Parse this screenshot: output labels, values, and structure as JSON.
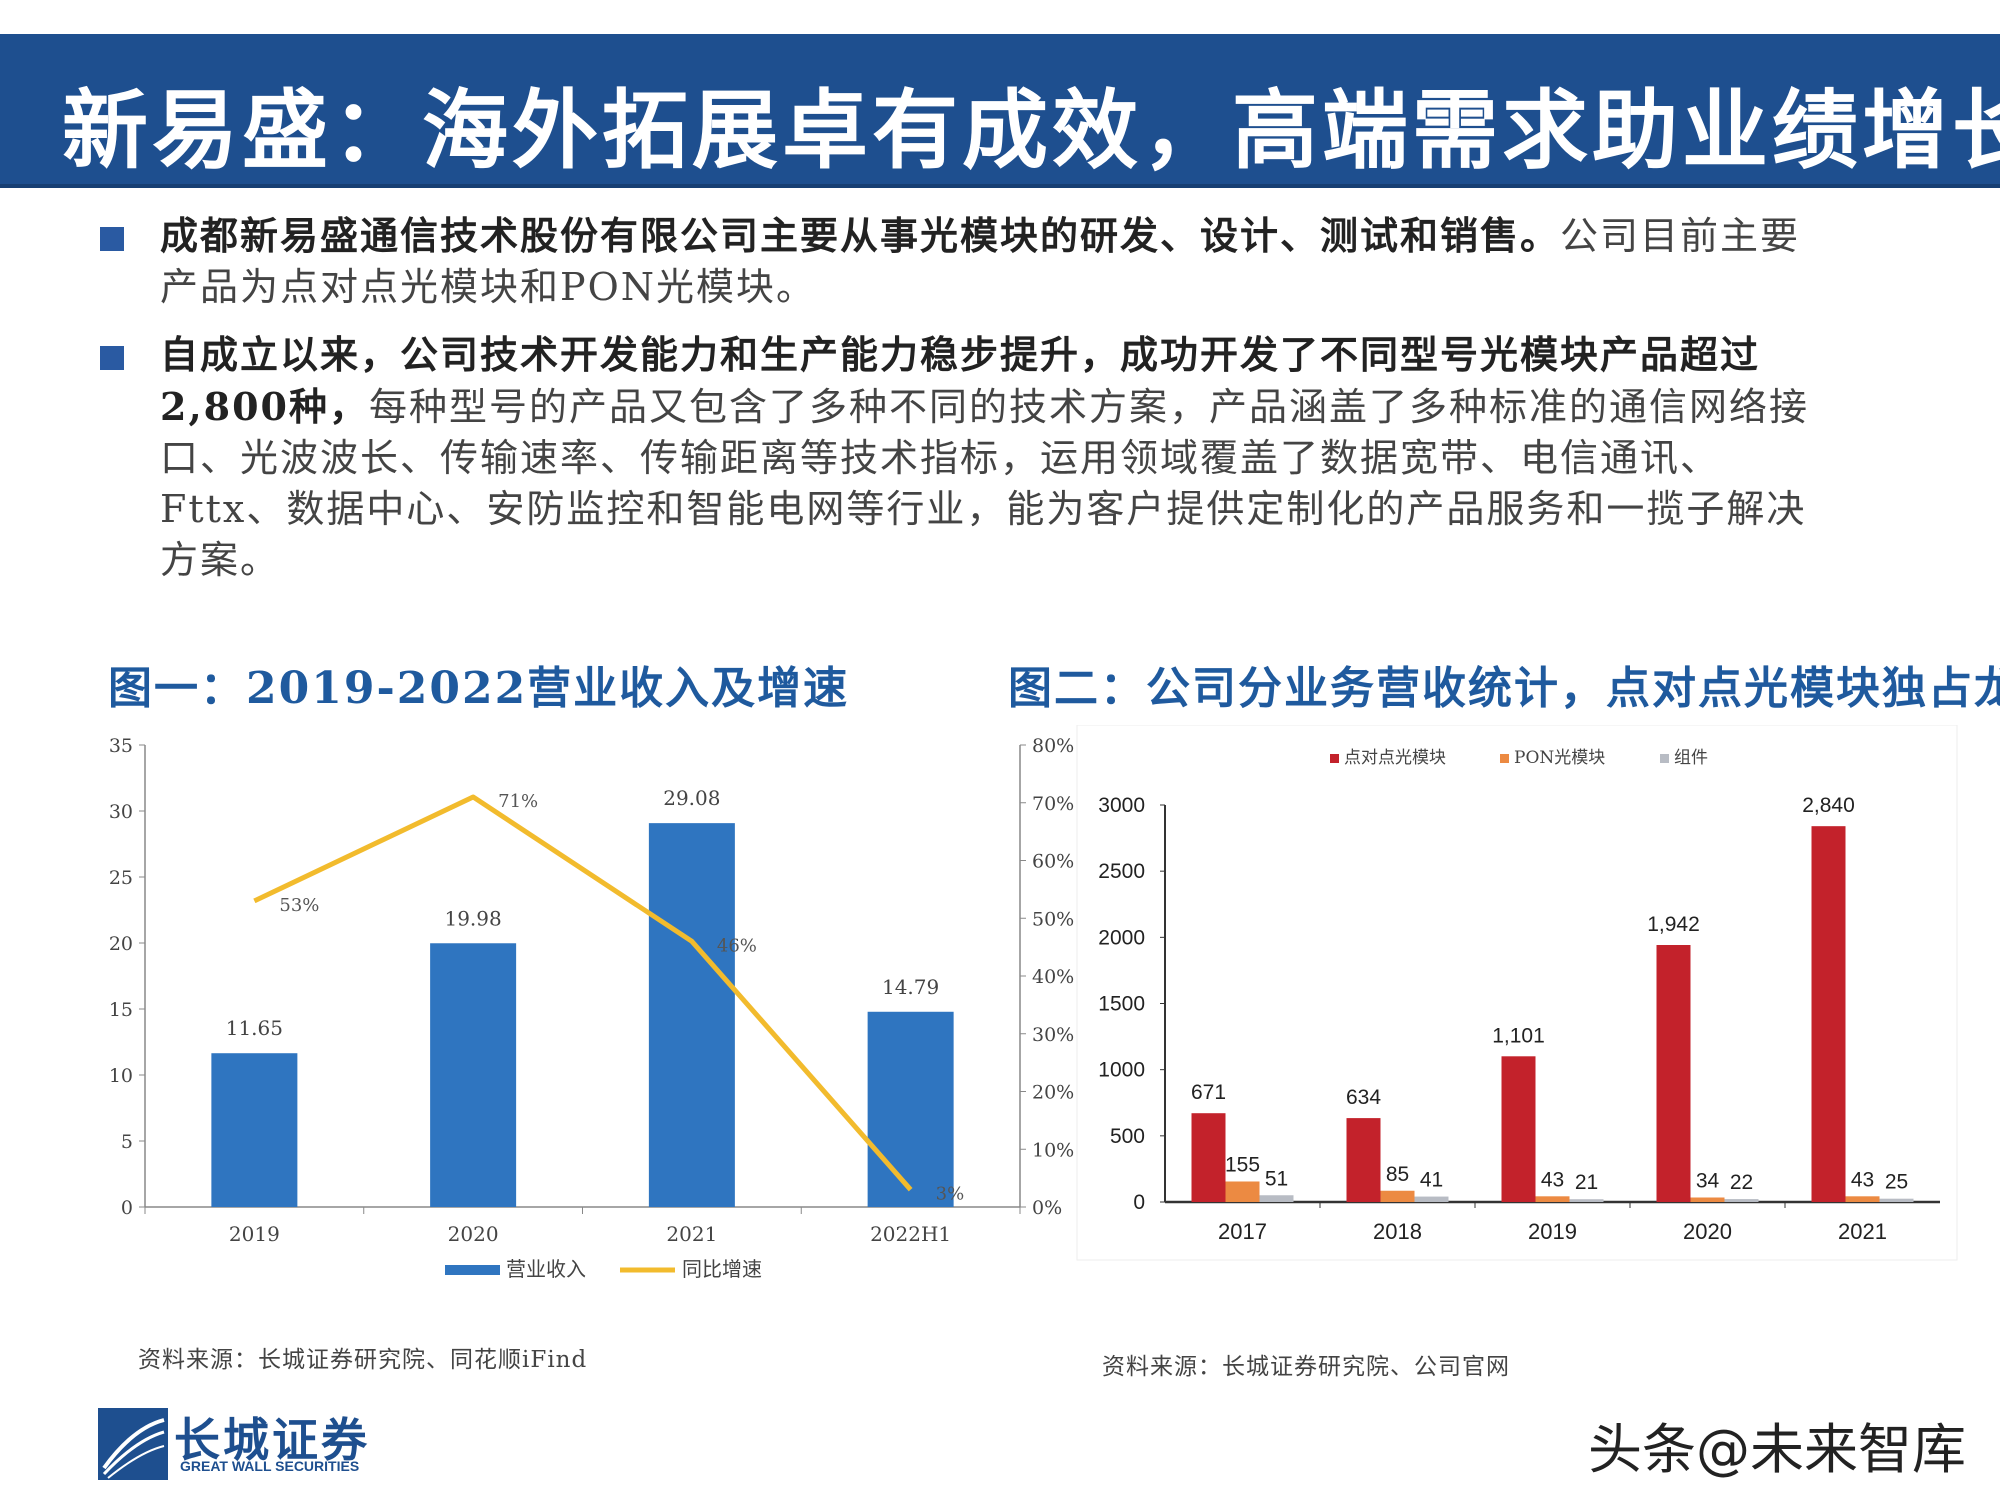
{
  "header": {
    "title": "新易盛：海外拓展卓有成效，高端需求助业绩增长"
  },
  "bullets": [
    {
      "bold": "成都新易盛通信技术股份有限公司主要从事光模块的研发、设计、测试和销售。",
      "text": "公司目前主要产品为点对点光模块和PON光模块。"
    },
    {
      "bold": "自成立以来，公司技术开发能力和生产能力稳步提升，成功开发了不同型号光模块产品超过2,800种，",
      "text": "每种型号的产品又包含了多种不同的技术方案，产品涵盖了多种标准的通信网络接口、光波波长、传输速率、传输距离等技术指标，运用领域覆盖了数据宽带、电信通讯、Fttx、数据中心、安防监控和智能电网等行业，能为客户提供定制化的产品服务和一揽子解决方案。"
    }
  ],
  "figures": {
    "fig1_title": "图一：2019-2022营业收入及增速",
    "fig2_title": "图二：公司分业务营收统计，点对点光模块独占龙头",
    "fig1_source": "资料来源：长城证券研究院、同花顺iFind",
    "fig2_source": "资料来源：长城证券研究院、公司官网"
  },
  "chart_data": [
    {
      "type": "bar",
      "categories": [
        "2019",
        "2020",
        "2021",
        "2022H1"
      ],
      "series": [
        {
          "name": "营业收入",
          "type": "bar",
          "axis": "left",
          "values": [
            11.65,
            19.98,
            29.08,
            14.79
          ],
          "labels": [
            "11.65",
            "19.98",
            "29.08",
            "14.79"
          ],
          "color": "#2f75c0"
        },
        {
          "name": "同比增速",
          "type": "line",
          "axis": "right",
          "values": [
            53,
            71,
            46,
            3
          ],
          "labels": [
            "53%",
            "71%",
            "46%",
            "3%"
          ],
          "color": "#f2bb2d"
        }
      ],
      "ylim_left": [
        0,
        35
      ],
      "yticks_left": [
        "0",
        "5",
        "10",
        "15",
        "20",
        "25",
        "30",
        "35"
      ],
      "ylim_right": [
        0,
        80
      ],
      "yticks_right": [
        "0%",
        "10%",
        "20%",
        "30%",
        "40%",
        "50%",
        "60%",
        "70%",
        "80%"
      ],
      "grid": false,
      "legend": "bottom"
    },
    {
      "type": "bar",
      "categories": [
        "2017",
        "2018",
        "2019",
        "2020",
        "2021"
      ],
      "series": [
        {
          "name": "点对点光模块",
          "values": [
            671,
            634,
            1101,
            1942,
            2840
          ],
          "labels": [
            "671",
            "634",
            "1,101",
            "1,942",
            "2,840"
          ],
          "color": "#c3222b"
        },
        {
          "name": "PON光模块",
          "values": [
            155,
            85,
            43,
            34,
            43
          ],
          "labels": [
            "155",
            "85",
            "43",
            "34",
            "43"
          ],
          "color": "#ec8a42"
        },
        {
          "name": "组件",
          "values": [
            51,
            41,
            21,
            22,
            25
          ],
          "labels": [
            "51",
            "41",
            "21",
            "22",
            "25"
          ],
          "color": "#b8bcc4"
        }
      ],
      "ylim": [
        0,
        3000
      ],
      "yticks": [
        "0",
        "500",
        "1000",
        "1500",
        "2000",
        "2500",
        "3000"
      ],
      "grid": false,
      "legend": "top"
    }
  ],
  "footer": {
    "logo_text": "长城证券",
    "logo_sub": "GREAT WALL SECURITIES",
    "watermark": "头条@未来智库"
  },
  "colors": {
    "title_bar": "#1e4f8f",
    "accent": "#1f5a9e"
  }
}
